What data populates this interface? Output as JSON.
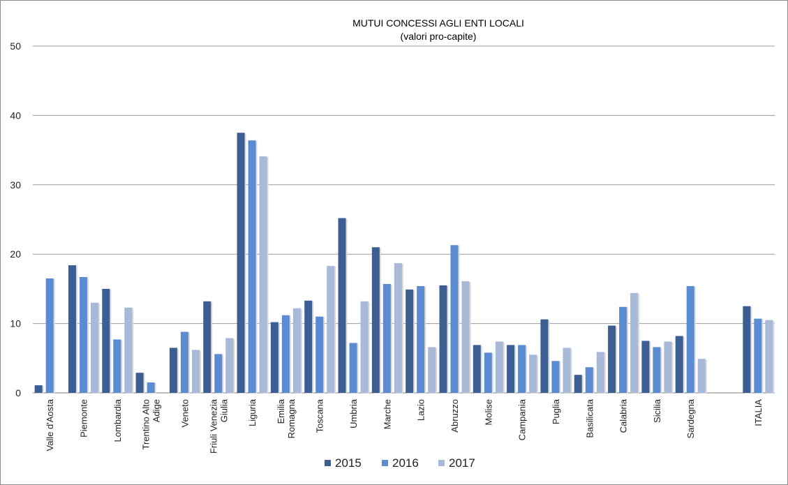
{
  "chart_data": {
    "type": "bar",
    "title": "MUTUI CONCESSI AGLI ENTI LOCALI",
    "subtitle": "(valori pro-capite)",
    "xlabel": "",
    "ylabel": "",
    "ylim": [
      0,
      50
    ],
    "yticks": [
      0,
      10,
      20,
      30,
      40,
      50
    ],
    "grid": true,
    "legend_position": "bottom",
    "categories": [
      "Valle d'Aosta",
      "Piemonte",
      "Lombardia",
      "Trentino Alto Adige",
      "Veneto",
      "Friuli Venezia Giulia",
      "Liguria",
      "Emilia Romagna",
      "Toscana",
      "Umbria",
      "Marche",
      "Lazio",
      "Abruzzo",
      "Molise",
      "Campania",
      "Puglia",
      "Basilicata",
      "Calabria",
      "Sicilia",
      "Sardegna",
      "",
      "ITALIA"
    ],
    "category_label_lines": [
      [
        "Valle d'Aosta"
      ],
      [
        "Piemonte"
      ],
      [
        "Lombardia"
      ],
      [
        "Trentino Alto",
        "Adige"
      ],
      [
        "Veneto"
      ],
      [
        "Friuli Venezia",
        "Giulia"
      ],
      [
        "Liguria"
      ],
      [
        "Emilia",
        "Romagna"
      ],
      [
        "Toscana"
      ],
      [
        "Umbria"
      ],
      [
        "Marche"
      ],
      [
        "Lazio"
      ],
      [
        "Abruzzo"
      ],
      [
        "Molise"
      ],
      [
        "Campania"
      ],
      [
        "Puglia"
      ],
      [
        "Basilicata"
      ],
      [
        "Calabria"
      ],
      [
        "Sicilia"
      ],
      [
        "Sardegna"
      ],
      [],
      [
        "ITALIA"
      ]
    ],
    "series": [
      {
        "name": "2015",
        "color": "#3d5e93",
        "values": [
          1.1,
          18.4,
          15.0,
          2.9,
          6.5,
          13.2,
          37.5,
          10.2,
          13.3,
          25.2,
          21.0,
          14.9,
          15.5,
          6.9,
          6.9,
          10.6,
          2.6,
          9.7,
          7.5,
          8.2,
          null,
          12.5
        ]
      },
      {
        "name": "2016",
        "color": "#5b8bd0",
        "values": [
          16.5,
          16.7,
          7.7,
          1.5,
          8.8,
          5.6,
          36.4,
          11.2,
          11.0,
          7.2,
          15.7,
          15.4,
          21.3,
          5.8,
          6.9,
          4.6,
          3.7,
          12.4,
          6.6,
          15.4,
          null,
          10.7
        ]
      },
      {
        "name": "2017",
        "color": "#a9b9d8",
        "values": [
          0,
          13.0,
          12.3,
          0,
          6.2,
          7.9,
          34.1,
          12.2,
          18.3,
          13.2,
          18.7,
          6.6,
          16.1,
          7.4,
          5.5,
          6.5,
          5.9,
          14.4,
          7.4,
          4.9,
          null,
          10.5
        ]
      }
    ]
  }
}
